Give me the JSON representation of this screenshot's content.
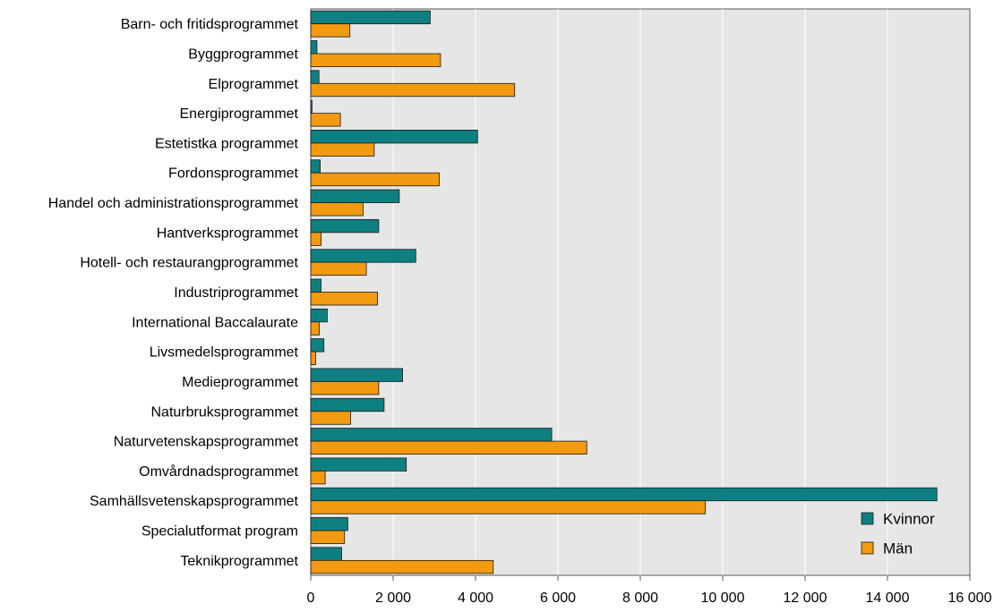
{
  "chart_data": {
    "type": "bar",
    "orientation": "horizontal",
    "categories": [
      "Barn- och fritidsprogrammet",
      "Byggprogrammet",
      "Elprogrammet",
      "Energiprogrammet",
      "Estetistka programmet",
      "Fordonsprogrammet",
      "Handel och administrationsprogrammet",
      "Hantverksprogrammet",
      "Hotell- och restaurangprogrammet",
      "Industriprogrammet",
      "International Baccalaurate",
      "Livsmedelsprogrammet",
      "Medieprogrammet",
      "Naturbruksprogrammet",
      "Naturvetenskapsprogrammet",
      "Omvårdnadsprogrammet",
      "Samhällsvetenskapsprogrammet",
      "Specialutformat program",
      "Teknikprogrammet"
    ],
    "series": [
      {
        "name": "Kvinnor",
        "color": "#0f8082",
        "values": [
          2900,
          150,
          200,
          30,
          4050,
          230,
          2150,
          1650,
          2550,
          250,
          400,
          320,
          2230,
          1780,
          5850,
          2320,
          15200,
          900,
          750
        ]
      },
      {
        "name": "Män",
        "color": "#f29a10",
        "values": [
          950,
          3150,
          4950,
          720,
          1540,
          3120,
          1270,
          250,
          1350,
          1620,
          210,
          120,
          1650,
          970,
          6700,
          350,
          9580,
          820,
          4430
        ]
      }
    ],
    "xlim": [
      0,
      16000
    ],
    "xticks": [
      0,
      2000,
      4000,
      6000,
      8000,
      10000,
      12000,
      14000,
      16000
    ],
    "xtick_labels": [
      "0",
      "2 000",
      "4 000",
      "6 000",
      "8 000",
      "10 000",
      "12 000",
      "14 000",
      "16 000"
    ],
    "grid": true,
    "legend_position": "bottom-right",
    "plot_background": "#e6e6e6"
  }
}
